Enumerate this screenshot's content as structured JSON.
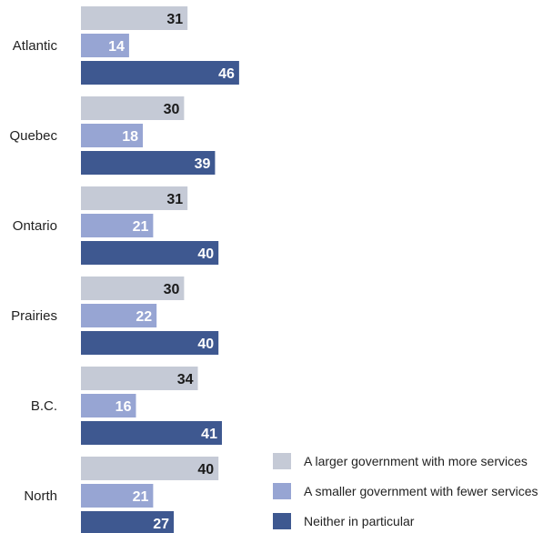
{
  "chart_data": {
    "type": "bar",
    "orientation": "horizontal",
    "categories": [
      "Atlantic",
      "Quebec",
      "Ontario",
      "Prairies",
      "B.C.",
      "North"
    ],
    "series": [
      {
        "name": "A larger government with more services",
        "values": [
          31,
          30,
          31,
          30,
          34,
          40
        ],
        "color": "#c5cad6",
        "label_color": "#1a1a1a"
      },
      {
        "name": "A smaller government with fewer services",
        "values": [
          14,
          18,
          21,
          22,
          16,
          21
        ],
        "color": "#97a5d3",
        "label_color": "#ffffff"
      },
      {
        "name": "Neither in particular",
        "values": [
          46,
          39,
          40,
          40,
          41,
          27
        ],
        "color": "#3e5890",
        "label_color": "#ffffff"
      }
    ],
    "title": "",
    "xlabel": "",
    "ylabel": "",
    "xlim": [
      0,
      100
    ],
    "grid": false,
    "legend_position": "bottom-right"
  }
}
